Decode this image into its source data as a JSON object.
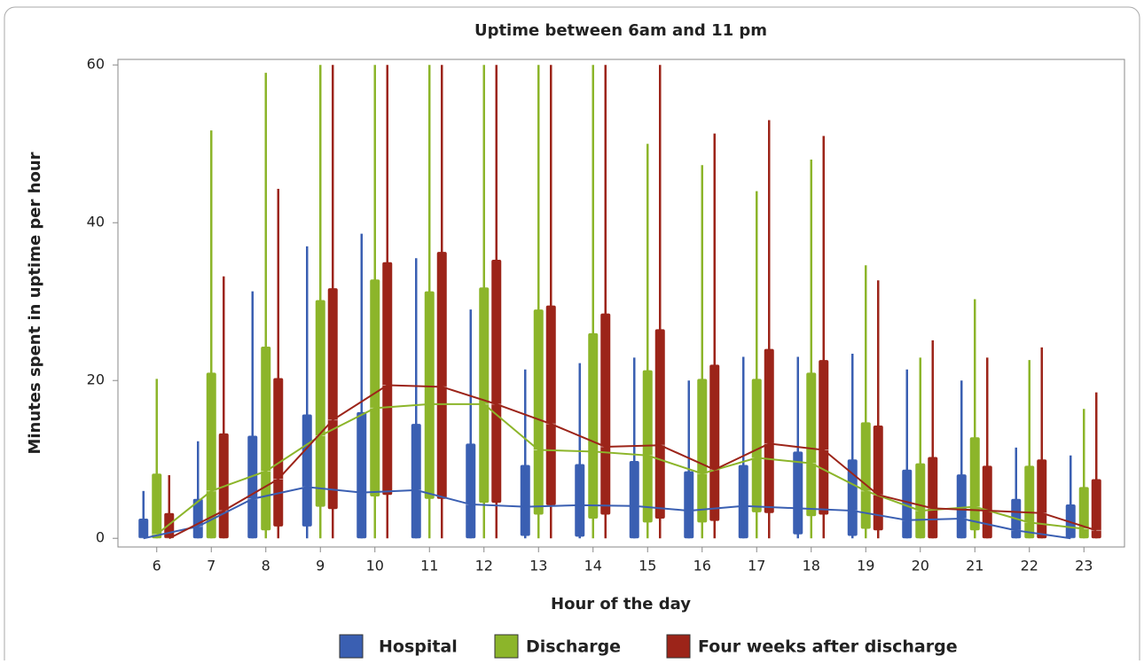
{
  "chart_data": {
    "type": "box",
    "title": "Uptime between 6am and 11 pm",
    "x_label": "Hour of the day",
    "y_label": "Minutes spent in uptime per hour",
    "categories": [
      "6",
      "7",
      "8",
      "9",
      "10",
      "11",
      "12",
      "13",
      "14",
      "15",
      "16",
      "17",
      "18",
      "19",
      "20",
      "21",
      "22",
      "23"
    ],
    "ylim": [
      -1.1,
      60.7
    ],
    "yticks": [
      0,
      20,
      40,
      60
    ],
    "series": [
      {
        "name": "Hospital",
        "color": "#3a5fb2",
        "min": [
          0,
          0,
          0,
          0,
          0,
          0,
          0,
          0,
          0,
          0,
          0,
          0,
          0,
          0,
          0,
          0,
          0,
          0
        ],
        "q1": [
          0,
          0,
          0,
          1.5,
          0,
          0,
          0,
          0.3,
          0.2,
          0,
          0,
          0,
          0.5,
          0.3,
          0,
          0,
          0,
          0
        ],
        "median": [
          0,
          1.5,
          5,
          6.5,
          5.8,
          6.1,
          4.3,
          4,
          4.2,
          4.1,
          3.5,
          4.1,
          3.8,
          3.5,
          2.3,
          2.5,
          1,
          0
        ],
        "q3": [
          2.5,
          5,
          13,
          15.7,
          16,
          14.5,
          12,
          9.3,
          9.4,
          9.8,
          8.5,
          9.3,
          11,
          10,
          8.7,
          8.1,
          5,
          4.3
        ],
        "max": [
          6,
          12.3,
          31.3,
          37,
          38.6,
          35.5,
          29,
          21.4,
          22.2,
          22.9,
          20,
          23,
          23,
          23.4,
          21.4,
          20,
          11.5,
          10.5
        ]
      },
      {
        "name": "Discharge",
        "color": "#8cb52a",
        "min": [
          0,
          0,
          0,
          0,
          0,
          0,
          0,
          0,
          0,
          0,
          0,
          0,
          0,
          0,
          0,
          0,
          0,
          0
        ],
        "q1": [
          0,
          0,
          1,
          4,
          5.3,
          5,
          4.5,
          3,
          2.5,
          2,
          2,
          3.3,
          2.8,
          1.2,
          0,
          1,
          0,
          0
        ],
        "median": [
          0.5,
          6,
          8.5,
          13,
          16.5,
          17,
          17,
          11.2,
          11,
          10.5,
          8.2,
          10.2,
          9.5,
          6,
          3.5,
          4,
          2,
          1.2
        ],
        "q3": [
          8.2,
          21,
          24.3,
          30.2,
          32.8,
          31.3,
          31.8,
          29,
          26,
          21.3,
          20.2,
          20.2,
          21,
          14.7,
          9.5,
          12.8,
          9.2,
          6.5
        ],
        "max": [
          20.2,
          51.7,
          59,
          60,
          60,
          60,
          60,
          60,
          60,
          50,
          47.3,
          44,
          48,
          34.6,
          22.9,
          30.3,
          22.6,
          16.4
        ]
      },
      {
        "name": "Four weeks after discharge",
        "color": "#9c2419",
        "min": [
          0,
          0,
          0,
          0,
          0,
          0,
          0,
          0,
          0,
          0,
          0,
          0,
          0,
          0,
          0,
          0,
          0,
          0
        ],
        "q1": [
          0,
          0,
          1.5,
          3.7,
          5.5,
          5,
          4.5,
          4.2,
          3,
          2.5,
          2.2,
          3.2,
          3,
          1,
          0,
          0,
          0,
          0
        ],
        "median": [
          0,
          3.5,
          7.5,
          15,
          19.4,
          19.2,
          17,
          14.5,
          11.6,
          11.8,
          8.7,
          12,
          11.2,
          5.5,
          3.8,
          3.5,
          3.2,
          1
        ],
        "q3": [
          3.2,
          13.3,
          20.3,
          31.7,
          35,
          36.3,
          35.3,
          29.5,
          28.5,
          26.5,
          22,
          24,
          22.6,
          14.3,
          10.3,
          9.2,
          10,
          7.5
        ],
        "max": [
          8,
          33.2,
          44.3,
          60,
          60,
          60,
          60,
          60,
          60,
          60,
          51.3,
          53,
          51,
          32.7,
          25.1,
          22.9,
          24.2,
          18.5
        ]
      }
    ]
  }
}
